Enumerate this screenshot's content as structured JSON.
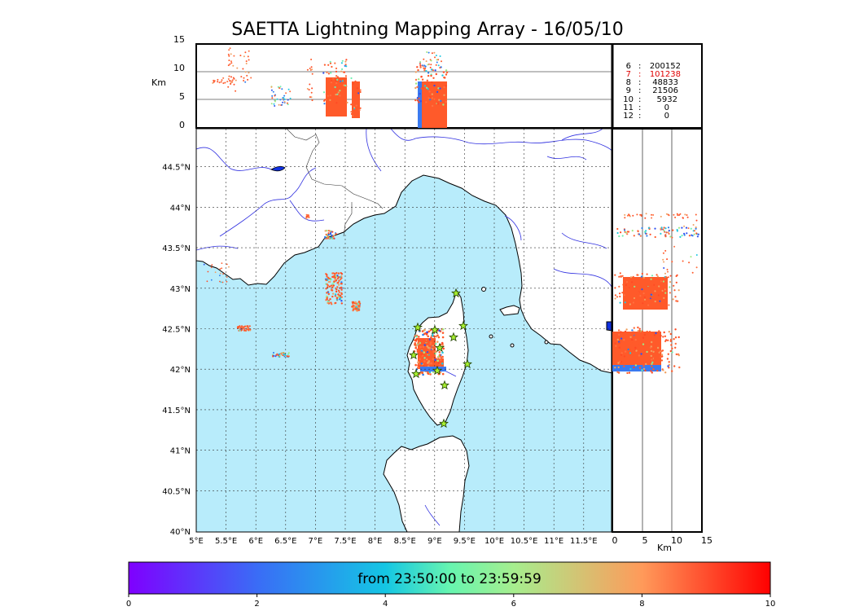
{
  "title": "SAETTA Lightning Mapping Array - 16/05/10",
  "altitude_panel": {
    "unit_label": "Km",
    "y_ticks": [
      "15",
      "10",
      "5",
      "0"
    ]
  },
  "side_panel": {
    "unit_label": "Km",
    "x_ticks": [
      "0",
      "5",
      "10",
      "15"
    ]
  },
  "map": {
    "lon_ticks": [
      "5°E",
      "5.5°E",
      "6°E",
      "6.5°E",
      "7°E",
      "7.5°E",
      "8°E",
      "8.5°E",
      "9°E",
      "9.5°E",
      "10°E",
      "10.5°E",
      "11°E",
      "11.5°E"
    ],
    "lat_ticks": [
      "40°N",
      "40.5°N",
      "41°N",
      "41.5°N",
      "42°N",
      "42.5°N",
      "43°N",
      "43.5°N",
      "44°N",
      "44.5°N"
    ],
    "sea_color": "#b8ecfb",
    "land_color": "#ffffff"
  },
  "station_counts": [
    {
      "stations": "6",
      "count": "200152",
      "color": "#000000"
    },
    {
      "stations": "7",
      "count": "101238",
      "color": "#e00000"
    },
    {
      "stations": "8",
      "count": "48833",
      "color": "#000000"
    },
    {
      "stations": "9",
      "count": "21506",
      "color": "#000000"
    },
    {
      "stations": "10",
      "count": "5932",
      "color": "#000000"
    },
    {
      "stations": "11",
      "count": "0",
      "color": "#000000"
    },
    {
      "stations": "12",
      "count": "0",
      "color": "#000000"
    }
  ],
  "colorbar": {
    "text": "from 23:50:00 to 23:59:59",
    "ticks": [
      "0",
      "2",
      "4",
      "6",
      "8",
      "10"
    ]
  }
}
